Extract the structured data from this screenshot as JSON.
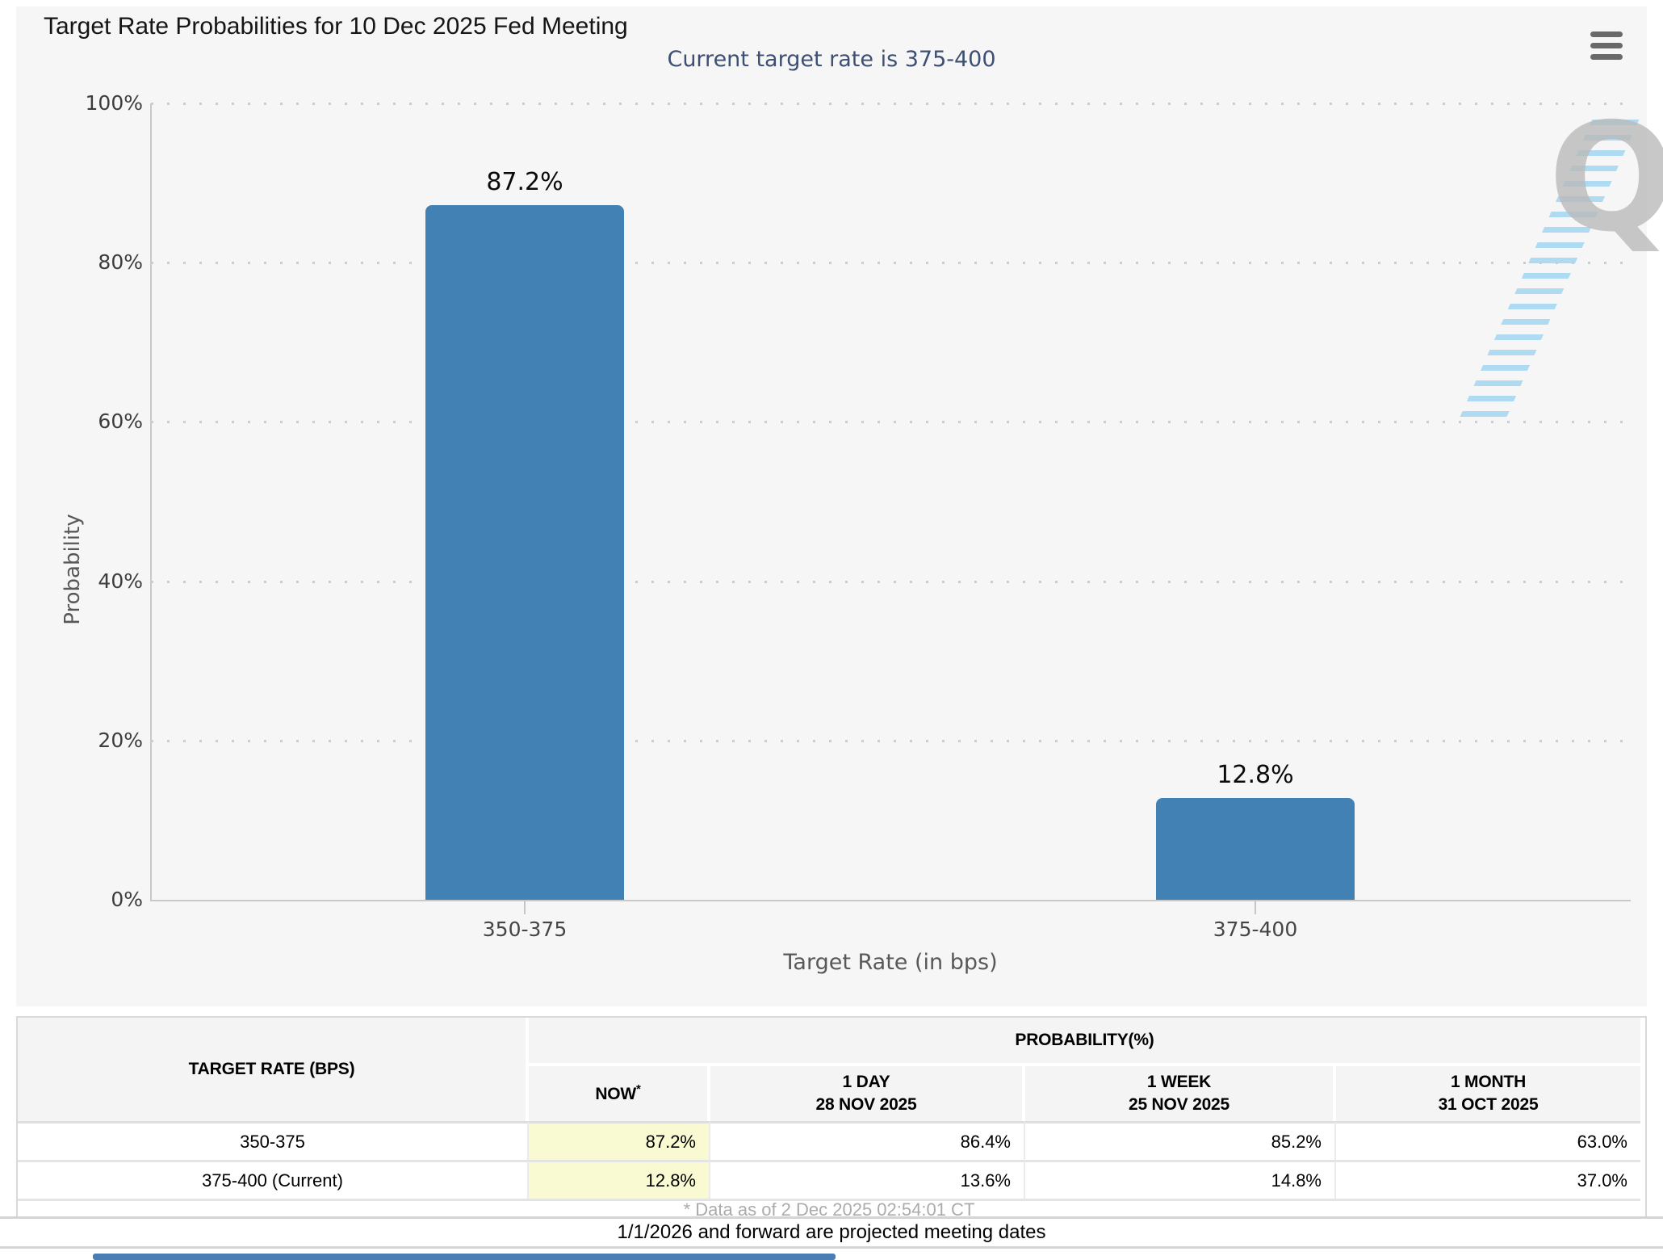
{
  "header": {
    "title": "Target Rate Probabilities for 10 Dec 2025 Fed Meeting",
    "menu_icon": "hamburger-menu"
  },
  "chart_data": {
    "type": "bar",
    "title": "Target Rate Probabilities for 10 Dec 2025 Fed Meeting",
    "subtitle": "Current target rate is 375-400",
    "categories": [
      "350-375",
      "375-400"
    ],
    "values": [
      87.2,
      12.8
    ],
    "value_labels": [
      "87.2%",
      "12.8%"
    ],
    "xlabel": "Target Rate (in bps)",
    "ylabel": "Probability",
    "ylim": [
      0,
      100
    ],
    "yticks": [
      0,
      20,
      40,
      60,
      80,
      100
    ],
    "ytick_labels": [
      "0%",
      "20%",
      "40%",
      "60%",
      "80%",
      "100%"
    ],
    "bar_color": "#4281b4",
    "grid": "dotted-horizontal",
    "legend_position": "none",
    "watermark": "Q"
  },
  "table": {
    "col1_header": "TARGET RATE (BPS)",
    "group_header": "PROBABILITY(%)",
    "now_sup": "*",
    "columns": [
      {
        "line1": "NOW",
        "line2": ""
      },
      {
        "line1": "1 DAY",
        "line2": "28 NOV 2025"
      },
      {
        "line1": "1 WEEK",
        "line2": "25 NOV 2025"
      },
      {
        "line1": "1 MONTH",
        "line2": "31 OCT 2025"
      }
    ],
    "rows": [
      {
        "label": "350-375",
        "values": [
          "87.2%",
          "86.4%",
          "85.2%",
          "63.0%"
        ]
      },
      {
        "label": "375-400 (Current)",
        "values": [
          "12.8%",
          "13.6%",
          "14.8%",
          "37.0%"
        ]
      }
    ],
    "footnote": "* Data as of 2 Dec 2025 02:54:01 CT",
    "highlight_color": "#fafad2"
  },
  "bottom_note": "1/1/2026 and forward are projected meeting dates"
}
